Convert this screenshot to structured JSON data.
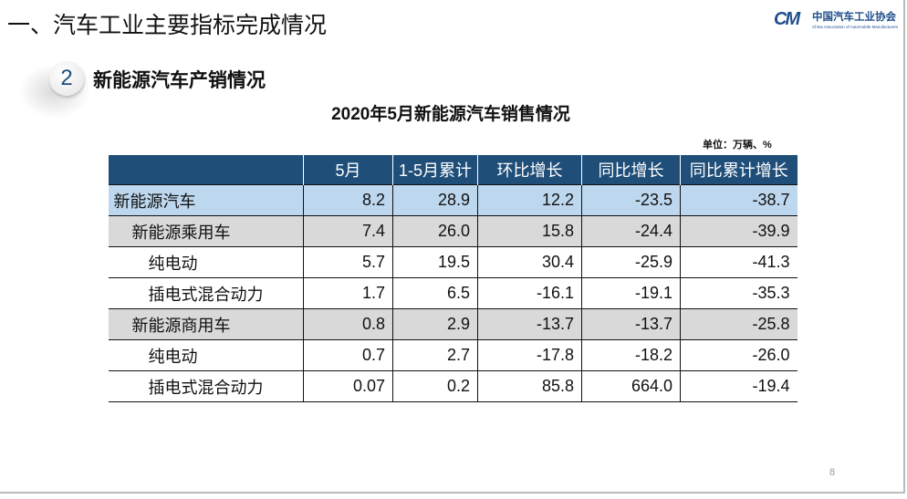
{
  "header": {
    "title": "一、汽车工业主要指标完成情况",
    "logo_cn": "中国汽车工业协会",
    "logo_en": "China Association of Automobile Manufacturers",
    "logo_mark": "CM"
  },
  "section": {
    "number": "2",
    "title": "新能源汽车产销情况"
  },
  "table": {
    "title": "2020年5月新能源汽车销售情况",
    "unit": "单位：万辆、%",
    "columns": [
      "",
      "5月",
      "1-5月累计",
      "环比增长",
      "同比增长",
      "同比累计增长"
    ],
    "rows": [
      {
        "label": "新能源汽车",
        "level": 0,
        "style": "blue",
        "values": [
          "8.2",
          "28.9",
          "12.2",
          "-23.5",
          "-38.7"
        ]
      },
      {
        "label": "新能源乘用车",
        "level": 1,
        "style": "gray",
        "values": [
          "7.4",
          "26.0",
          "15.8",
          "-24.4",
          "-39.9"
        ]
      },
      {
        "label": "纯电动",
        "level": 2,
        "style": "white",
        "values": [
          "5.7",
          "19.5",
          "30.4",
          "-25.9",
          "-41.3"
        ]
      },
      {
        "label": "插电式混合动力",
        "level": 2,
        "style": "white",
        "values": [
          "1.7",
          "6.5",
          "-16.1",
          "-19.1",
          "-35.3"
        ]
      },
      {
        "label": "新能源商用车",
        "level": 1,
        "style": "gray",
        "values": [
          "0.8",
          "2.9",
          "-13.7",
          "-13.7",
          "-25.8"
        ]
      },
      {
        "label": "纯电动",
        "level": 2,
        "style": "white",
        "values": [
          "0.7",
          "2.7",
          "-17.8",
          "-18.2",
          "-26.0"
        ]
      },
      {
        "label": "插电式混合动力",
        "level": 2,
        "style": "white",
        "values": [
          "0.07",
          "0.2",
          "85.8",
          "664.0",
          "-19.4"
        ]
      }
    ]
  },
  "page_number": "8",
  "colors": {
    "header_bg": "#1f4e79",
    "highlight_row": "#bdd7ee",
    "sub_row": "#d9d9d9"
  }
}
